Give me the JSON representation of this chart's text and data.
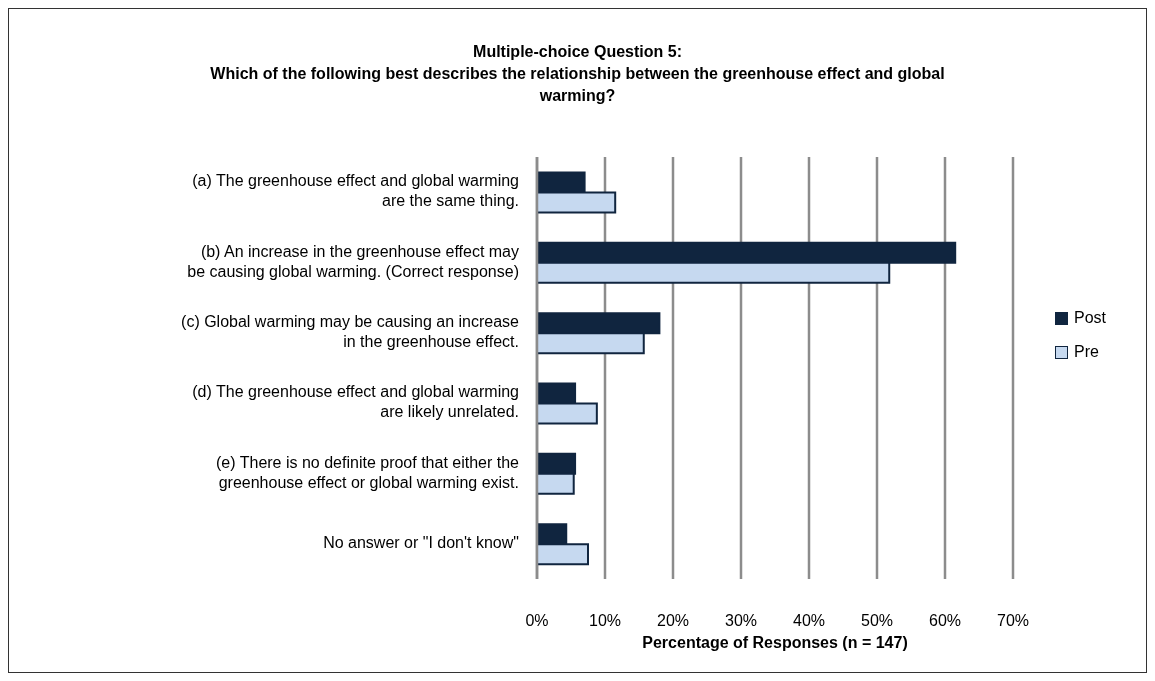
{
  "chart_data": {
    "type": "bar",
    "orientation": "horizontal",
    "title": "Multiple-choice Question 5:",
    "subtitle": "Which of the following best describes the relationship between the greenhouse effect and global warming?",
    "xlabel": "Percentage of Responses (n = 147)",
    "categories": [
      "(a) The greenhouse effect and global warming are the same thing.",
      "(b) An increase in the greenhouse effect may be causing global warming. (Correct response)",
      "(c) Global warming may be causing an increase in the greenhouse effect.",
      "(d) The greenhouse effect and global warming are likely unrelated.",
      "(e) There is no definite proof that either the greenhouse effect or global warming exist.",
      "No answer or \"I don't know\""
    ],
    "series": [
      {
        "name": "Post",
        "color": "#10253f",
        "values": [
          7.0,
          61.5,
          18.0,
          5.6,
          5.6,
          4.3
        ]
      },
      {
        "name": "Pre",
        "color": "#c6d9f0",
        "values": [
          11.5,
          51.8,
          15.7,
          8.8,
          5.4,
          7.5
        ]
      }
    ],
    "xlim": [
      0,
      70
    ],
    "xticks": [
      {
        "value": 0,
        "label": "0%"
      },
      {
        "value": 10,
        "label": "10%"
      },
      {
        "value": 20,
        "label": "20%"
      },
      {
        "value": 30,
        "label": "30%"
      },
      {
        "value": 40,
        "label": "40%"
      },
      {
        "value": 50,
        "label": "50%"
      },
      {
        "value": 60,
        "label": "60%"
      },
      {
        "value": 70,
        "label": "70%"
      }
    ],
    "grid": "x",
    "legend": "right"
  }
}
